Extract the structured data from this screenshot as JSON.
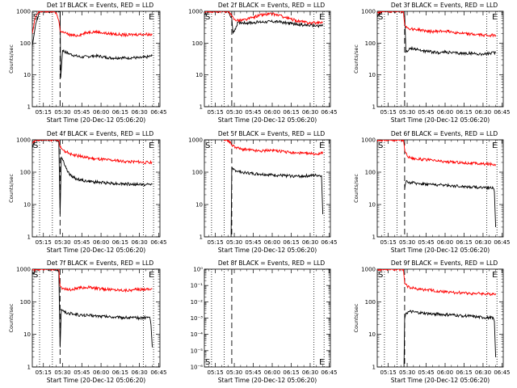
{
  "common": {
    "xlabel": "Start Time (20-Dec-12 05:06:20)",
    "ylabel": "Counts/sec",
    "x_ticks": [
      "05:15",
      "05:30",
      "05:45",
      "06:00",
      "06:15",
      "06:30",
      "06:45"
    ],
    "x_tick_minutes": [
      15,
      30,
      45,
      60,
      75,
      90,
      105
    ],
    "xlim_minutes": [
      6.33,
      106
    ],
    "colors": {
      "events": "#000000",
      "lld": "#ff0000"
    },
    "marker_S": "S",
    "marker_E": "E",
    "dotted_lines_minutes": [
      12,
      22,
      93,
      101
    ],
    "dashed_line_minutes": 28
  },
  "chart_data": [
    {
      "type": "line",
      "title": "Det 1f BLACK = Events, RED = LLD",
      "yscale": "log",
      "ylim": [
        1,
        1000
      ],
      "ytick_labels": [
        "1",
        "10",
        "100",
        "1000"
      ],
      "show_ylabel": true,
      "series": [
        {
          "name": "Events",
          "color": "#000000",
          "x": [
            6.33,
            9,
            12,
            15,
            18,
            20,
            23,
            26,
            28,
            28.5,
            30,
            33,
            36,
            40,
            45,
            50,
            55,
            60,
            65,
            70,
            75,
            80,
            85,
            90,
            95,
            100
          ],
          "y": [
            80,
            400,
            1000,
            1000,
            1000,
            1000,
            1000,
            1000,
            1000,
            8,
            60,
            50,
            45,
            40,
            36,
            38,
            40,
            38,
            35,
            34,
            35,
            34,
            35,
            34,
            36,
            40
          ]
        },
        {
          "name": "LLD",
          "color": "#ff0000",
          "x": [
            6.33,
            9,
            12,
            15,
            18,
            20,
            23,
            25,
            27,
            28,
            30,
            33,
            36,
            40,
            45,
            50,
            55,
            60,
            65,
            70,
            75,
            80,
            85,
            90,
            95,
            100
          ],
          "y": [
            200,
            700,
            1000,
            1000,
            1000,
            1000,
            1000,
            900,
            500,
            250,
            220,
            200,
            180,
            170,
            190,
            220,
            230,
            215,
            200,
            195,
            185,
            180,
            185,
            190,
            190,
            185
          ]
        }
      ]
    },
    {
      "type": "line",
      "title": "Det 2f BLACK = Events, RED = LLD",
      "yscale": "log",
      "ylim": [
        1,
        1000
      ],
      "ytick_labels": [
        "1",
        "10",
        "100",
        "1000"
      ],
      "show_ylabel": false,
      "series": [
        {
          "name": "Events",
          "color": "#000000",
          "x": [
            6.33,
            10,
            14,
            18,
            22,
            25,
            28,
            29,
            33,
            40,
            45,
            50,
            55,
            60,
            65,
            70,
            75,
            80,
            85,
            90,
            95,
            100
          ],
          "y": [
            800,
            1000,
            1000,
            1000,
            1000,
            1000,
            600,
            200,
            450,
            430,
            440,
            460,
            470,
            480,
            470,
            440,
            410,
            390,
            370,
            360,
            350,
            355
          ]
        },
        {
          "name": "LLD",
          "color": "#ff0000",
          "x": [
            6.33,
            10,
            14,
            18,
            22,
            25,
            28,
            30,
            35,
            40,
            45,
            50,
            55,
            60,
            65,
            70,
            75,
            80,
            85,
            90,
            95,
            100
          ],
          "y": [
            900,
            1000,
            1000,
            1000,
            1000,
            1000,
            700,
            550,
            520,
            560,
            650,
            750,
            800,
            820,
            760,
            650,
            560,
            500,
            460,
            430,
            440,
            450
          ]
        }
      ]
    },
    {
      "type": "line",
      "title": "Det 3f BLACK = Events, RED = LLD",
      "yscale": "log",
      "ylim": [
        1,
        1000
      ],
      "ytick_labels": [
        "1",
        "10",
        "100",
        "1000"
      ],
      "show_ylabel": true,
      "series": [
        {
          "name": "Events",
          "color": "#000000",
          "x": [
            6.33,
            10,
            14,
            18,
            22,
            25,
            27,
            28,
            29,
            33,
            40,
            45,
            50,
            55,
            60,
            65,
            70,
            75,
            80,
            85,
            90,
            95,
            100
          ],
          "y": [
            700,
            1000,
            1000,
            1000,
            1000,
            1000,
            1000,
            1000,
            50,
            70,
            60,
            55,
            52,
            50,
            52,
            50,
            48,
            47,
            48,
            46,
            45,
            47,
            50
          ]
        },
        {
          "name": "LLD",
          "color": "#ff0000",
          "x": [
            6.33,
            10,
            14,
            18,
            22,
            25,
            27,
            28,
            30,
            33,
            40,
            45,
            50,
            55,
            60,
            65,
            70,
            75,
            80,
            85,
            90,
            95,
            100
          ],
          "y": [
            900,
            1000,
            1000,
            1000,
            1000,
            1000,
            1000,
            400,
            300,
            280,
            260,
            240,
            230,
            235,
            240,
            230,
            210,
            200,
            190,
            185,
            180,
            175,
            180
          ]
        }
      ]
    },
    {
      "type": "line",
      "title": "Det 4f BLACK = Events, RED = LLD",
      "yscale": "log",
      "ylim": [
        1,
        1000
      ],
      "ytick_labels": [
        "1",
        "10",
        "100",
        "1000"
      ],
      "show_ylabel": true,
      "series": [
        {
          "name": "Events",
          "color": "#000000",
          "x": [
            6.33,
            9,
            12,
            15,
            18,
            22,
            25,
            27,
            28,
            29,
            31,
            34,
            38,
            42,
            46,
            50,
            55,
            60,
            65,
            70,
            75,
            80,
            85,
            90,
            95,
            100
          ],
          "y": [
            600,
            1000,
            1000,
            1000,
            1000,
            1000,
            1000,
            900,
            5,
            300,
            200,
            100,
            70,
            60,
            55,
            52,
            50,
            48,
            47,
            45,
            44,
            43,
            42,
            42,
            41,
            42
          ]
        },
        {
          "name": "LLD",
          "color": "#ff0000",
          "x": [
            6.33,
            9,
            12,
            15,
            18,
            22,
            25,
            27,
            28,
            30,
            33,
            37,
            40,
            45,
            50,
            55,
            60,
            65,
            70,
            75,
            80,
            85,
            90,
            95,
            100
          ],
          "y": [
            800,
            1000,
            1000,
            1000,
            1000,
            1000,
            1000,
            1000,
            600,
            500,
            420,
            360,
            330,
            300,
            280,
            260,
            250,
            240,
            230,
            220,
            215,
            210,
            205,
            200,
            205
          ]
        }
      ]
    },
    {
      "type": "line",
      "title": "Det 5f BLACK = Events, RED = LLD",
      "yscale": "log",
      "ylim": [
        1,
        1000
      ],
      "ytick_labels": [
        "1",
        "10",
        "100",
        "1000"
      ],
      "show_ylabel": false,
      "series": [
        {
          "name": "Events",
          "color": "#000000",
          "x": [
            27.5,
            28,
            29,
            32,
            36,
            40,
            45,
            50,
            55,
            60,
            65,
            70,
            75,
            80,
            85,
            90,
            95,
            99,
            100
          ],
          "y": [
            0,
            130,
            120,
            110,
            100,
            95,
            90,
            88,
            85,
            82,
            80,
            78,
            76,
            75,
            76,
            78,
            80,
            80,
            5
          ]
        },
        {
          "name": "LLD",
          "color": "#ff0000",
          "x": [
            22,
            24,
            26,
            28,
            31,
            35,
            40,
            45,
            50,
            55,
            60,
            65,
            70,
            75,
            80,
            85,
            90,
            95,
            100
          ],
          "y": [
            1000,
            1000,
            900,
            700,
            600,
            520,
            500,
            470,
            450,
            460,
            480,
            450,
            420,
            400,
            390,
            380,
            370,
            370,
            380
          ]
        }
      ]
    },
    {
      "type": "line",
      "title": "Det 6f BLACK = Events, RED = LLD",
      "yscale": "log",
      "ylim": [
        1,
        1000
      ],
      "ytick_labels": [
        "1",
        "10",
        "100",
        "1000"
      ],
      "show_ylabel": true,
      "series": [
        {
          "name": "Events",
          "color": "#000000",
          "x": [
            28,
            29,
            32,
            36,
            40,
            45,
            50,
            55,
            60,
            65,
            70,
            75,
            80,
            85,
            90,
            95,
            98,
            99,
            100
          ],
          "y": [
            30,
            50,
            48,
            46,
            45,
            43,
            42,
            40,
            40,
            38,
            37,
            36,
            35,
            34,
            34,
            33,
            32,
            25,
            2
          ]
        },
        {
          "name": "LLD",
          "color": "#ff0000",
          "x": [
            6.33,
            12,
            18,
            22,
            25,
            27,
            28,
            30,
            33,
            37,
            40,
            45,
            50,
            55,
            60,
            65,
            70,
            75,
            80,
            85,
            90,
            95,
            100
          ],
          "y": [
            1000,
            1000,
            1000,
            1000,
            1000,
            1000,
            500,
            320,
            280,
            260,
            250,
            240,
            230,
            220,
            210,
            205,
            200,
            195,
            190,
            185,
            180,
            178,
            175
          ]
        }
      ]
    },
    {
      "type": "line",
      "title": "Det 7f BLACK = Events, RED = LLD",
      "yscale": "log",
      "ylim": [
        1,
        1000
      ],
      "ytick_labels": [
        "1",
        "10",
        "100",
        "1000"
      ],
      "show_ylabel": true,
      "series": [
        {
          "name": "Events",
          "color": "#000000",
          "x": [
            6.33,
            9,
            12,
            15,
            18,
            22,
            25,
            27,
            28,
            29,
            31,
            34,
            38,
            42,
            46,
            50,
            55,
            60,
            65,
            70,
            75,
            80,
            85,
            90,
            95,
            98,
            99,
            100
          ],
          "y": [
            700,
            1000,
            1000,
            1000,
            1000,
            1000,
            1000,
            900,
            4,
            60,
            50,
            45,
            42,
            40,
            38,
            38,
            37,
            36,
            35,
            34,
            33,
            33,
            32,
            32,
            33,
            34,
            20,
            4
          ]
        },
        {
          "name": "LLD",
          "color": "#ff0000",
          "x": [
            6.33,
            9,
            12,
            15,
            18,
            22,
            25,
            27,
            28,
            30,
            33,
            37,
            40,
            45,
            50,
            55,
            60,
            65,
            70,
            75,
            80,
            85,
            90,
            95,
            100
          ],
          "y": [
            900,
            1000,
            1000,
            1000,
            1000,
            1000,
            1000,
            1000,
            300,
            260,
            240,
            230,
            250,
            270,
            280,
            260,
            250,
            240,
            235,
            230,
            225,
            230,
            240,
            245,
            250
          ]
        }
      ]
    },
    {
      "type": "line",
      "title": "Det 8f BLACK = Events, RED = LLD",
      "yscale": "log",
      "ylim": [
        1,
        1e-06
      ],
      "ytick_labels": [
        "10⁻⁶",
        "10⁻⁵",
        "10⁻⁴",
        "10⁻³",
        "10⁻²",
        "10⁻¹",
        "10⁰"
      ],
      "ytick_values": [
        1e-06,
        1e-05,
        0.0001,
        0.001,
        0.01,
        0.1,
        1
      ],
      "show_ylabel": false,
      "series": []
    },
    {
      "type": "line",
      "title": "Det 9f BLACK = Events, RED = LLD",
      "yscale": "log",
      "ylim": [
        1,
        1000
      ],
      "ytick_labels": [
        "1",
        "10",
        "100",
        "1000"
      ],
      "show_ylabel": true,
      "series": [
        {
          "name": "Events",
          "color": "#000000",
          "x": [
            27.5,
            28,
            29,
            32,
            36,
            40,
            45,
            50,
            55,
            60,
            65,
            70,
            75,
            80,
            85,
            90,
            95,
            98,
            99,
            100
          ],
          "y": [
            1,
            30,
            45,
            50,
            48,
            46,
            44,
            42,
            42,
            40,
            40,
            38,
            37,
            36,
            34,
            33,
            32,
            33,
            25,
            2
          ]
        },
        {
          "name": "LLD",
          "color": "#ff0000",
          "x": [
            6.33,
            12,
            18,
            22,
            25,
            27,
            28,
            30,
            33,
            37,
            40,
            45,
            50,
            55,
            60,
            65,
            70,
            75,
            80,
            85,
            90,
            95,
            100
          ],
          "y": [
            1000,
            1000,
            1000,
            1000,
            1000,
            1000,
            400,
            300,
            270,
            250,
            240,
            230,
            220,
            210,
            200,
            195,
            190,
            185,
            180,
            180,
            175,
            170,
            180
          ]
        }
      ]
    }
  ]
}
